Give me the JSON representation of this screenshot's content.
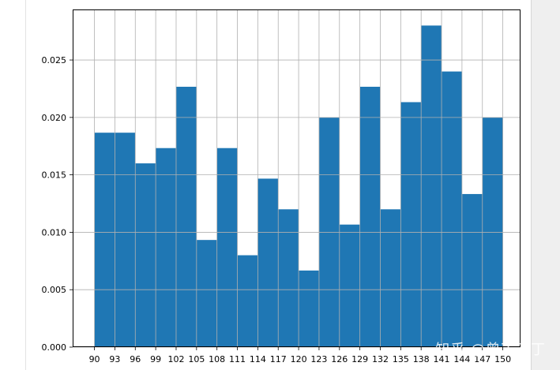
{
  "chart_data": {
    "type": "bar",
    "title": "",
    "xlabel": "",
    "ylabel": "",
    "x_ticks": [
      "90",
      "93",
      "96",
      "99",
      "102",
      "105",
      "108",
      "111",
      "114",
      "117",
      "120",
      "123",
      "126",
      "129",
      "132",
      "135",
      "138",
      "141",
      "144",
      "147",
      "150"
    ],
    "bins": [
      [
        90,
        93
      ],
      [
        93,
        96
      ],
      [
        96,
        99
      ],
      [
        99,
        102
      ],
      [
        102,
        105
      ],
      [
        105,
        108
      ],
      [
        108,
        111
      ],
      [
        111,
        114
      ],
      [
        114,
        117
      ],
      [
        117,
        120
      ],
      [
        120,
        123
      ],
      [
        123,
        126
      ],
      [
        126,
        129
      ],
      [
        129,
        132
      ],
      [
        132,
        135
      ],
      [
        135,
        138
      ],
      [
        138,
        141
      ],
      [
        141,
        144
      ],
      [
        144,
        147
      ],
      [
        147,
        150
      ]
    ],
    "values": [
      0.01867,
      0.01867,
      0.016,
      0.01733,
      0.02267,
      0.00933,
      0.01733,
      0.008,
      0.01467,
      0.012,
      0.00667,
      0.02,
      0.01067,
      0.02267,
      0.012,
      0.02133,
      0.028,
      0.024,
      0.01333,
      0.02
    ],
    "y_ticks": [
      "0.000",
      "0.005",
      "0.010",
      "0.015",
      "0.020",
      "0.025"
    ],
    "ylim": [
      0,
      0.0294
    ],
    "xlim": [
      86.8,
      152.6
    ],
    "grid": true,
    "bar_color": "#1f77b4"
  },
  "watermark": "知乎 @曾丁丁丁"
}
